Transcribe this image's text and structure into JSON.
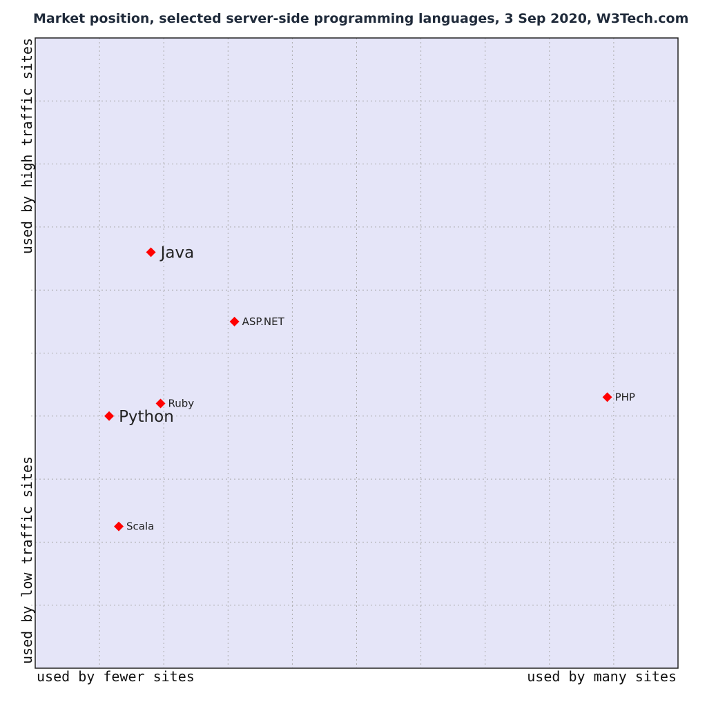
{
  "chart_data": {
    "type": "scatter",
    "title": "Market position, selected server-side programming languages, 3 Sep 2020, W3Tech.com",
    "x_axis": {
      "left_label": "used by fewer sites",
      "right_label": "used by many sites",
      "range": [
        0,
        10
      ],
      "grid": true
    },
    "y_axis": {
      "bottom_label": "used by low traffic sites",
      "top_label": "used by high traffic sites",
      "range": [
        0,
        10
      ],
      "grid": true
    },
    "legend": "none",
    "point_color": "#ff0000",
    "background_color": "#e5e5f8",
    "points": [
      {
        "label": "Java",
        "x": 1.8,
        "y": 6.6,
        "label_size": "large"
      },
      {
        "label": "ASP.NET",
        "x": 3.1,
        "y": 5.5,
        "label_size": "small"
      },
      {
        "label": "PHP",
        "x": 8.9,
        "y": 4.3,
        "label_size": "small"
      },
      {
        "label": "Ruby",
        "x": 1.95,
        "y": 4.2,
        "label_size": "small"
      },
      {
        "label": "Python",
        "x": 1.15,
        "y": 4.0,
        "label_size": "large"
      },
      {
        "label": "Scala",
        "x": 1.3,
        "y": 2.25,
        "label_size": "small"
      }
    ]
  }
}
